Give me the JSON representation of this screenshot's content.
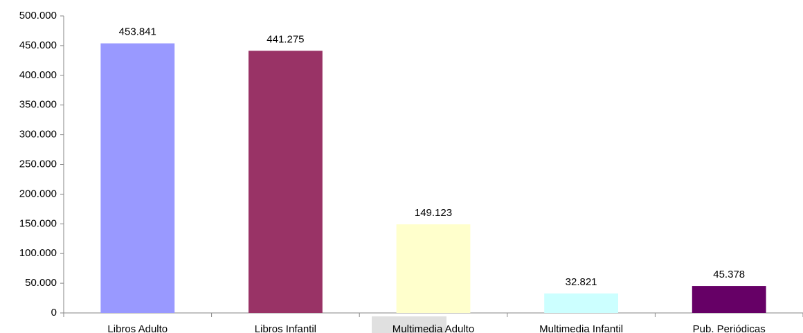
{
  "chart_data": {
    "type": "bar",
    "categories": [
      "Libros Adulto",
      "Libros Infantil",
      "Multimedia Adulto",
      "Multimedia Infantil",
      "Pub. Periódicas"
    ],
    "values": [
      453841,
      441275,
      149123,
      32821,
      45378
    ],
    "value_labels": [
      "453.841",
      "441.275",
      "149.123",
      "32.821",
      "45.378"
    ],
    "colors": [
      "#9999ff",
      "#993366",
      "#ffffcc",
      "#ccffff",
      "#660066"
    ],
    "ylim": [
      0,
      500000
    ],
    "yticks": [
      0,
      {
        "value": 50000,
        "label": "50.000"
      },
      {
        "value": 100000,
        "label": "100.000"
      },
      {
        "value": 150000,
        "label": "150.000"
      },
      {
        "value": 200000,
        "label": "200.000"
      },
      {
        "value": 250000,
        "label": "250.000"
      },
      {
        "value": 300000,
        "label": "300.000"
      },
      {
        "value": 350000,
        "label": "350.000"
      },
      {
        "value": 400000,
        "label": "400.000"
      },
      {
        "value": 450000,
        "label": "450.000"
      },
      {
        "value": 500000,
        "label": "500.000"
      }
    ],
    "grid": false
  }
}
